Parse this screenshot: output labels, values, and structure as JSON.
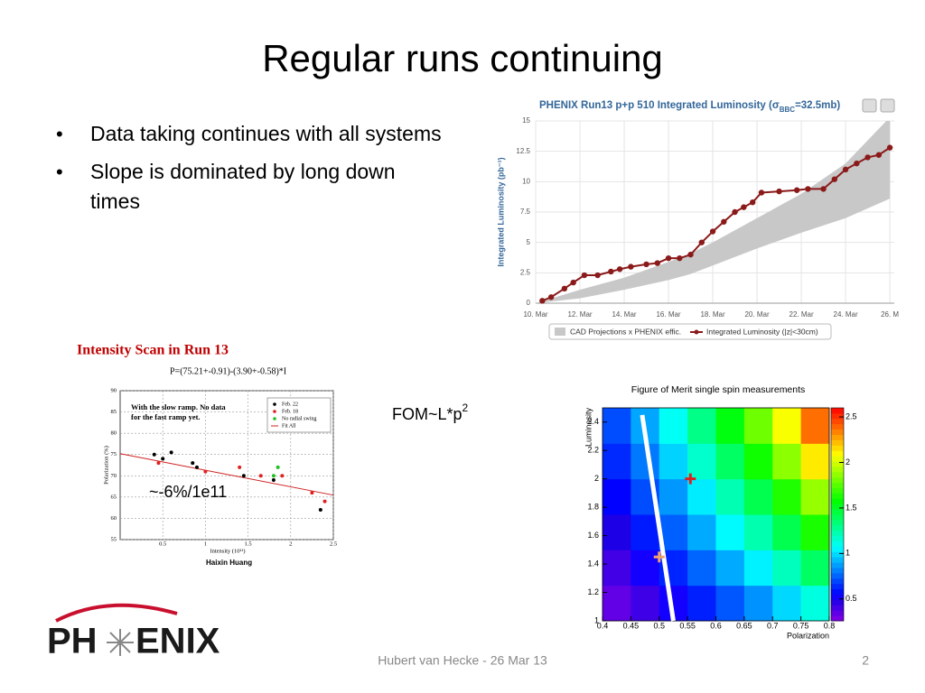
{
  "title": "Regular runs continuing",
  "bullets": [
    "Data taking continues with all systems",
    "Slope is dominated by long down times"
  ],
  "luminosity_chart": {
    "type": "line",
    "title": [
      "PHENIX Run13 p+p 510 Integrated Luminosity (σ",
      "BBC",
      "=32.5mb)"
    ],
    "y_label": "Integrated Luminosity (pb⁻¹)",
    "xlim": [
      10,
      26.2
    ],
    "xticks": [
      {
        "value": 10,
        "label": "10. Mar"
      },
      {
        "value": 12,
        "label": "12. Mar"
      },
      {
        "value": 14,
        "label": "14. Mar"
      },
      {
        "value": 16,
        "label": "16. Mar"
      },
      {
        "value": 18,
        "label": "18. Mar"
      },
      {
        "value": 20,
        "label": "20. Mar"
      },
      {
        "value": 22,
        "label": "22. Mar"
      },
      {
        "value": 24,
        "label": "24. Mar"
      },
      {
        "value": 26,
        "label": "26. M"
      }
    ],
    "ylim": [
      0,
      15
    ],
    "yticks": [
      0,
      2.5,
      5,
      7.5,
      10,
      12.5,
      15
    ],
    "grid": true,
    "band": {
      "name": "CAD Projections x PHENIX effic.",
      "color": "#c8c8c8",
      "x": [
        10,
        12,
        14,
        16,
        17,
        18,
        20,
        22,
        24,
        26
      ],
      "lower": [
        0,
        0.4,
        1.1,
        1.9,
        2.4,
        3.1,
        4.5,
        5.8,
        7.0,
        8.6
      ],
      "upper": [
        0,
        1.1,
        2.1,
        3.4,
        4.1,
        5.0,
        7.0,
        9.0,
        11.5,
        15.3
      ]
    },
    "series": [
      {
        "name": "Integrated Luminosity (|z|<30cm)",
        "color": "#8b1a1a",
        "x": [
          10.3,
          10.7,
          11.3,
          11.7,
          12.2,
          12.8,
          13.4,
          13.8,
          14.3,
          15,
          15.5,
          16,
          16.5,
          17,
          17.5,
          18,
          18.5,
          19,
          19.4,
          19.8,
          20.2,
          21,
          21.8,
          22.3,
          23,
          23.5,
          24,
          24.5,
          25,
          25.5,
          26
        ],
        "values": [
          0.2,
          0.5,
          1.2,
          1.7,
          2.3,
          2.3,
          2.6,
          2.8,
          3.0,
          3.2,
          3.3,
          3.7,
          3.7,
          4.0,
          5.0,
          5.9,
          6.7,
          7.5,
          7.9,
          8.3,
          9.1,
          9.2,
          9.3,
          9.4,
          9.4,
          10.2,
          11.0,
          11.5,
          12.0,
          12.2,
          12.8
        ]
      }
    ]
  },
  "intensity_chart": {
    "type": "scatter",
    "title": "Intensity Scan in Run 13",
    "formula": "P=(75.21+-0.91)-(3.90+-0.58)*I",
    "note": [
      "With the slow ramp. No data",
      "for the fast ramp yet."
    ],
    "x_label": "Intensity (10¹¹)",
    "y_label": "Polarization (%)",
    "author": "Haixin Huang",
    "slope_label": "~-6%/1e11",
    "xlim": [
      0,
      2.5
    ],
    "xticks": [
      0.5,
      1,
      1.5,
      2,
      2.5
    ],
    "ylim": [
      55,
      90
    ],
    "yticks": [
      55,
      60,
      65,
      70,
      75,
      80,
      85,
      90
    ],
    "grid": true,
    "series": [
      {
        "name": "Feb. 22",
        "color": "#000000",
        "x": [
          0.4,
          0.5,
          0.6,
          0.85,
          0.9,
          1.45,
          1.8,
          2.35
        ],
        "values": [
          75,
          74,
          75.5,
          73,
          72,
          70,
          69,
          62
        ]
      },
      {
        "name": "Feb. 18",
        "color": "#e02020",
        "x": [
          0.45,
          1.0,
          1.4,
          1.65,
          1.9,
          2.25,
          2.4
        ],
        "values": [
          73,
          71,
          72,
          70,
          70,
          66,
          64
        ]
      },
      {
        "name": "No radial swing",
        "color": "#20c020",
        "x": [
          1.8,
          1.85
        ],
        "values": [
          70,
          72
        ]
      }
    ],
    "fit": {
      "name": "Fit All",
      "color": "#d02020",
      "x": [
        0,
        2.5
      ],
      "values": [
        75.21,
        65.46
      ]
    }
  },
  "fom_label": [
    "FOM~L*p",
    "2"
  ],
  "fom_chart": {
    "type": "heatmap",
    "title": "Figure of Merit single spin measurements",
    "x_label": "Polarization",
    "y_label": "Luminosity",
    "xlim": [
      0.4,
      0.8
    ],
    "xticks": [
      0.4,
      0.45,
      0.5,
      0.55,
      0.6,
      0.65,
      0.7,
      0.75,
      0.8
    ],
    "ylim": [
      1,
      2.5
    ],
    "yticks": [
      1,
      1.2,
      1.4,
      1.6,
      1.8,
      2,
      2.2,
      2.4
    ],
    "zlim": [
      0.26,
      2.6
    ],
    "zticks": [
      0.5,
      1,
      1.5,
      2,
      2.5
    ],
    "x_edges": [
      0.4,
      0.45,
      0.5,
      0.55,
      0.6,
      0.65,
      0.7,
      0.75,
      0.8
    ],
    "y_edges": [
      1,
      1.25,
      1.5,
      1.75,
      2,
      2.25,
      2.5
    ],
    "z": [
      [
        0.34,
        0.42,
        0.52,
        0.62,
        0.73,
        0.85,
        0.99,
        1.13
      ],
      [
        0.41,
        0.52,
        0.63,
        0.76,
        0.9,
        1.04,
        1.2,
        1.38
      ],
      [
        0.49,
        0.61,
        0.75,
        0.9,
        1.06,
        1.23,
        1.42,
        1.63
      ],
      [
        0.56,
        0.71,
        0.86,
        1.03,
        1.22,
        1.42,
        1.64,
        1.88
      ],
      [
        0.64,
        0.8,
        0.98,
        1.17,
        1.38,
        1.61,
        1.86,
        2.13
      ],
      [
        0.71,
        0.89,
        1.09,
        1.31,
        1.55,
        1.8,
        2.08,
        2.38
      ]
    ],
    "line": {
      "color": "#ffffff",
      "x": [
        0.47,
        0.525
      ],
      "values": [
        2.45,
        1.0
      ]
    },
    "markers": [
      {
        "color": "#e02020",
        "x": 0.555,
        "y": 2.0
      },
      {
        "color": "#f0a070",
        "x": 0.5,
        "y": 1.45
      }
    ]
  },
  "logo": [
    "PH",
    "ENIX"
  ],
  "footer": "Hubert van Hecke - 26 Mar 13",
  "page_number": "2"
}
